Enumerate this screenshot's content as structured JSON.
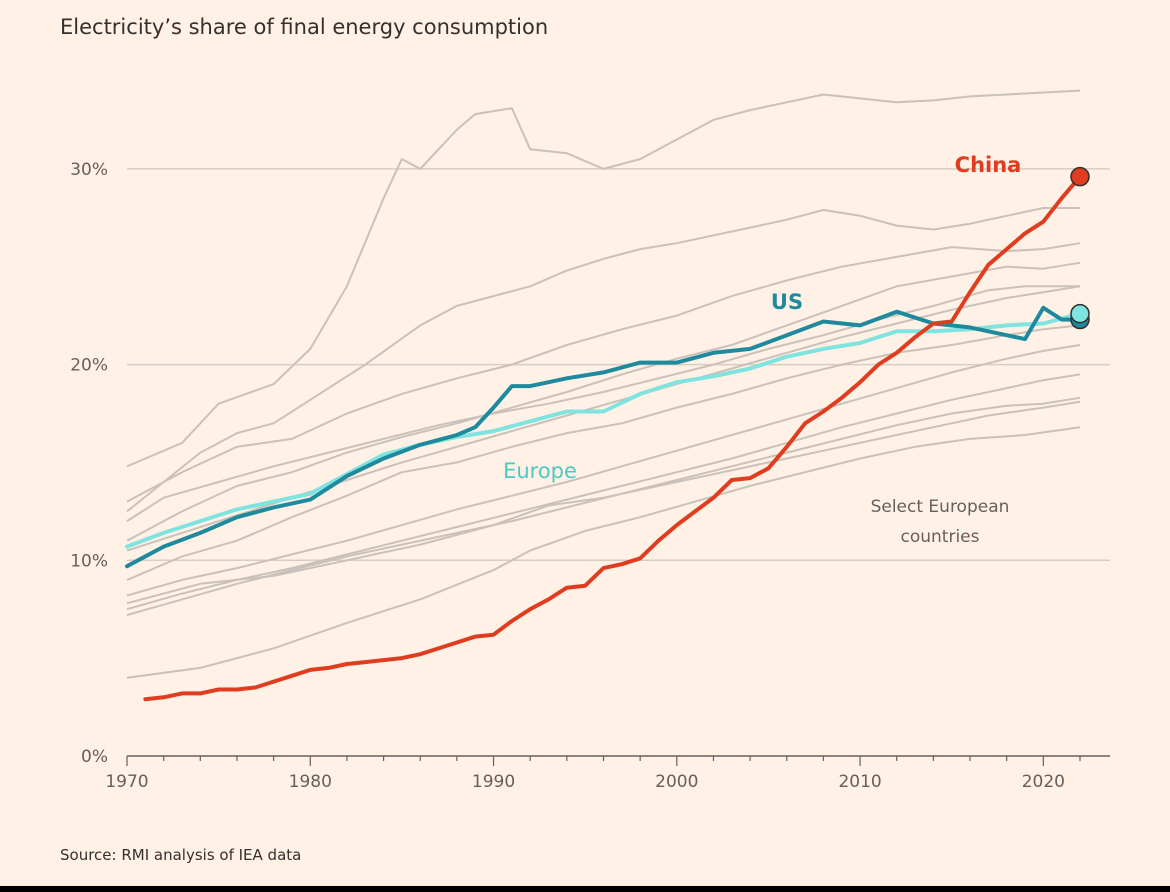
{
  "title": "Electricity’s share of final energy consumption",
  "source": "Source: RMI analysis of IEA data",
  "colors": {
    "background": "#fff1e5",
    "grid": "#d9cdc3",
    "axis": "#66605c",
    "gray_series": "#c9c1ba",
    "china": "#e03c1f",
    "us": "#1f8a9e",
    "europe": "#7fe3df"
  },
  "chart_data": {
    "type": "line",
    "title": "Electricity’s share of final energy consumption",
    "xlabel": "",
    "ylabel": "",
    "xlim": [
      1970,
      2022
    ],
    "ylim": [
      0,
      35
    ],
    "x_ticks": [
      1970,
      1980,
      1990,
      2000,
      2010,
      2020
    ],
    "y_ticks": [
      0,
      10,
      20,
      30
    ],
    "y_tick_labels": [
      "0%",
      "10%",
      "20%",
      "30%"
    ],
    "grid": true,
    "highlight_series": [
      {
        "name": "China",
        "label": "China",
        "color": "#e03c1f",
        "x": [
          1971,
          1972,
          1973,
          1974,
          1975,
          1976,
          1977,
          1978,
          1979,
          1980,
          1981,
          1982,
          1983,
          1984,
          1985,
          1986,
          1987,
          1988,
          1989,
          1990,
          1991,
          1992,
          1993,
          1994,
          1995,
          1996,
          1997,
          1998,
          1999,
          2000,
          2001,
          2002,
          2003,
          2004,
          2005,
          2006,
          2007,
          2008,
          2009,
          2010,
          2011,
          2012,
          2013,
          2014,
          2015,
          2016,
          2017,
          2018,
          2019,
          2020,
          2021,
          2022
        ],
        "values": [
          2.9,
          3.0,
          3.2,
          3.2,
          3.4,
          3.4,
          3.5,
          3.8,
          4.1,
          4.4,
          4.5,
          4.7,
          4.8,
          4.9,
          5.0,
          5.2,
          5.5,
          5.8,
          6.1,
          6.2,
          6.9,
          7.5,
          8.0,
          8.6,
          8.7,
          9.6,
          9.8,
          10.1,
          11.0,
          11.8,
          12.5,
          13.2,
          14.1,
          14.2,
          14.7,
          15.8,
          17.0,
          17.6,
          18.3,
          19.1,
          20.0,
          20.6,
          21.4,
          22.1,
          22.2,
          23.7,
          25.1,
          25.9,
          26.7,
          27.3,
          28.5,
          29.6
        ]
      },
      {
        "name": "US",
        "label": "US",
        "color": "#1f8a9e",
        "x": [
          1970,
          1972,
          1974,
          1976,
          1978,
          1980,
          1982,
          1984,
          1986,
          1988,
          1989,
          1990,
          1991,
          1992,
          1994,
          1996,
          1998,
          2000,
          2002,
          2004,
          2006,
          2008,
          2010,
          2012,
          2014,
          2016,
          2018,
          2019,
          2020,
          2021,
          2022
        ],
        "values": [
          9.7,
          10.7,
          11.4,
          12.2,
          12.7,
          13.1,
          14.3,
          15.2,
          15.9,
          16.4,
          16.8,
          17.8,
          18.9,
          18.9,
          19.3,
          19.6,
          20.1,
          20.1,
          20.6,
          20.8,
          21.5,
          22.2,
          22.0,
          22.7,
          22.1,
          21.9,
          21.5,
          21.3,
          22.9,
          22.3,
          22.3
        ]
      },
      {
        "name": "Europe",
        "label": "Europe",
        "color": "#7fe3df",
        "x": [
          1970,
          1972,
          1974,
          1976,
          1978,
          1980,
          1982,
          1984,
          1986,
          1988,
          1990,
          1992,
          1994,
          1996,
          1998,
          2000,
          2002,
          2004,
          2006,
          2008,
          2010,
          2012,
          2014,
          2016,
          2018,
          2020,
          2022
        ],
        "values": [
          10.7,
          11.4,
          12.0,
          12.6,
          13.0,
          13.4,
          14.4,
          15.4,
          15.9,
          16.3,
          16.6,
          17.1,
          17.6,
          17.6,
          18.5,
          19.1,
          19.4,
          19.8,
          20.4,
          20.8,
          21.1,
          21.7,
          21.7,
          21.8,
          22.0,
          22.1,
          22.6
        ]
      }
    ],
    "gray_series_label": "Select European countries",
    "gray_series": [
      {
        "x": [
          1970,
          1973,
          1975,
          1978,
          1980,
          1982,
          1984,
          1985,
          1986,
          1988,
          1989,
          1991,
          1992,
          1994,
          1996,
          1998,
          2000,
          2002,
          2004,
          2006,
          2008,
          2010,
          2012,
          2014,
          2016,
          2018,
          2020,
          2022
        ],
        "values": [
          14.8,
          16.0,
          18.0,
          19.0,
          20.8,
          24.0,
          28.5,
          30.5,
          30.0,
          32.0,
          32.8,
          33.1,
          31.0,
          30.8,
          30.0,
          30.5,
          31.5,
          32.5,
          33.0,
          33.4,
          33.8,
          33.6,
          33.4,
          33.5,
          33.7,
          33.8,
          33.9,
          34.0
        ]
      },
      {
        "x": [
          1970,
          1972,
          1974,
          1976,
          1978,
          1980,
          1983,
          1986,
          1988,
          1990,
          1992,
          1994,
          1996,
          1998,
          2000,
          2002,
          2004,
          2006,
          2008,
          2010,
          2012,
          2014,
          2016,
          2018,
          2020,
          2022
        ],
        "values": [
          12.5,
          14.0,
          15.5,
          16.5,
          17.0,
          18.2,
          20.0,
          22.0,
          23.0,
          23.5,
          24.0,
          24.8,
          25.4,
          25.9,
          26.2,
          26.6,
          27.0,
          27.4,
          27.9,
          27.6,
          27.1,
          26.9,
          27.2,
          27.6,
          28.0,
          28.0
        ]
      },
      {
        "x": [
          1970,
          1973,
          1976,
          1979,
          1982,
          1985,
          1988,
          1991,
          1994,
          1997,
          2000,
          2003,
          2006,
          2009,
          2012,
          2015,
          2018,
          2020,
          2022
        ],
        "values": [
          13.0,
          14.5,
          15.8,
          16.2,
          17.5,
          18.5,
          19.3,
          20.0,
          21.0,
          21.8,
          22.5,
          23.5,
          24.3,
          25.0,
          25.5,
          26.0,
          25.8,
          25.9,
          26.2
        ]
      },
      {
        "x": [
          1970,
          1973,
          1976,
          1979,
          1982,
          1985,
          1988,
          1991,
          1994,
          1997,
          2000,
          2003,
          2006,
          2009,
          2012,
          2015,
          2018,
          2020,
          2022
        ],
        "values": [
          11.0,
          12.5,
          13.8,
          14.5,
          15.5,
          16.3,
          17.0,
          17.8,
          18.6,
          19.5,
          20.3,
          21.0,
          22.0,
          23.0,
          24.0,
          24.5,
          25.0,
          24.9,
          25.2
        ]
      },
      {
        "x": [
          1970,
          1972,
          1975,
          1978,
          1981,
          1984,
          1987,
          1990,
          1993,
          1996,
          1999,
          2002,
          2005,
          2008,
          2011,
          2014,
          2017,
          2019,
          2021,
          2022
        ],
        "values": [
          12.0,
          13.2,
          14.0,
          14.8,
          15.5,
          16.2,
          16.9,
          17.5,
          18.0,
          18.6,
          19.3,
          20.0,
          20.8,
          21.5,
          22.3,
          23.0,
          23.8,
          24.0,
          24.0,
          24.0
        ]
      },
      {
        "x": [
          1970,
          1973,
          1976,
          1979,
          1982,
          1985,
          1988,
          1991,
          1994,
          1997,
          2000,
          2003,
          2006,
          2009,
          2012,
          2015,
          2018,
          2020,
          2022
        ],
        "values": [
          9.0,
          10.2,
          11.0,
          12.2,
          13.3,
          14.5,
          15.0,
          15.8,
          16.5,
          17.0,
          17.8,
          18.5,
          19.3,
          20.0,
          20.6,
          21.0,
          21.5,
          21.8,
          22.0
        ]
      },
      {
        "x": [
          1970,
          1973,
          1976,
          1979,
          1982,
          1985,
          1988,
          1991,
          1994,
          1997,
          2000,
          2003,
          2006,
          2009,
          2012,
          2015,
          2018,
          2020,
          2022
        ],
        "values": [
          8.2,
          9.0,
          9.6,
          10.3,
          11.0,
          11.8,
          12.6,
          13.3,
          14.0,
          14.8,
          15.6,
          16.4,
          17.2,
          18.0,
          18.8,
          19.6,
          20.3,
          20.7,
          21.0
        ]
      },
      {
        "x": [
          1970,
          1973,
          1976,
          1979,
          1982,
          1985,
          1988,
          1991,
          1994,
          1997,
          2000,
          2003,
          2006,
          2009,
          2012,
          2015,
          2018,
          2020,
          2022
        ],
        "values": [
          7.5,
          8.3,
          9.0,
          9.6,
          10.3,
          11.0,
          11.7,
          12.4,
          13.1,
          13.8,
          14.5,
          15.2,
          16.0,
          16.8,
          17.5,
          18.2,
          18.8,
          19.2,
          19.5
        ]
      },
      {
        "x": [
          1970,
          1973,
          1976,
          1979,
          1982,
          1985,
          1988,
          1991,
          1994,
          1997,
          2000,
          2003,
          2006,
          2009,
          2012,
          2015,
          2018,
          2020,
          2022
        ],
        "values": [
          7.2,
          8.0,
          8.8,
          9.5,
          10.2,
          10.8,
          11.4,
          12.0,
          12.7,
          13.4,
          14.1,
          14.8,
          15.5,
          16.2,
          16.9,
          17.5,
          17.9,
          18.0,
          18.3
        ]
      },
      {
        "x": [
          1970,
          1974,
          1978,
          1982,
          1986,
          1990,
          1992,
          1995,
          1998,
          2001,
          2004,
          2007,
          2010,
          2013,
          2016,
          2019,
          2022
        ],
        "values": [
          4.0,
          4.5,
          5.5,
          6.8,
          8.0,
          9.5,
          10.5,
          11.5,
          12.2,
          13.0,
          13.8,
          14.5,
          15.2,
          15.8,
          16.2,
          16.4,
          16.8
        ]
      },
      {
        "x": [
          1970,
          1974,
          1978,
          1982,
          1986,
          1990,
          1993,
          1996,
          1999,
          2002,
          2005,
          2008,
          2011,
          2014,
          2017,
          2020,
          2022
        ],
        "values": [
          7.8,
          8.8,
          9.2,
          10.0,
          10.8,
          11.8,
          12.8,
          13.2,
          13.8,
          14.4,
          15.0,
          15.6,
          16.2,
          16.8,
          17.4,
          17.8,
          18.1
        ]
      },
      {
        "x": [
          1970,
          1973,
          1976,
          1979,
          1982,
          1985,
          1988,
          1991,
          1994,
          1997,
          2000,
          2003,
          2006,
          2009,
          2012,
          2015,
          2018,
          2020,
          2022
        ],
        "values": [
          10.5,
          11.4,
          12.3,
          13.2,
          14.1,
          15.0,
          15.8,
          16.6,
          17.4,
          18.2,
          19.0,
          19.8,
          20.6,
          21.4,
          22.1,
          22.8,
          23.4,
          23.7,
          24.0
        ]
      }
    ],
    "annotations": [
      {
        "text": "China",
        "series": "China"
      },
      {
        "text": "US",
        "series": "US"
      },
      {
        "text": "Europe",
        "series": "Europe"
      },
      {
        "text_lines": [
          "Select European",
          "countries"
        ],
        "series": "gray"
      }
    ]
  }
}
